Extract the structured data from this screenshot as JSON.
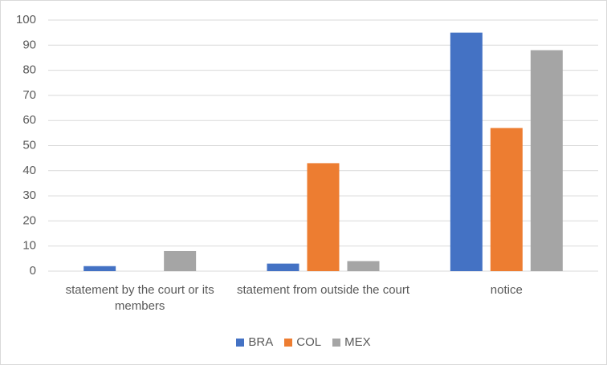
{
  "chart_data": {
    "type": "bar",
    "categories": [
      "statement by the court or its members",
      "statement from outside the court",
      "notice"
    ],
    "series": [
      {
        "name": "BRA",
        "color": "#4472c4",
        "values": [
          2,
          3,
          95
        ]
      },
      {
        "name": "COL",
        "color": "#ed7d31",
        "values": [
          0,
          43,
          57
        ]
      },
      {
        "name": "MEX",
        "color": "#a5a5a5",
        "values": [
          8,
          4,
          88
        ]
      }
    ],
    "ylim": [
      0,
      100
    ],
    "yticks": [
      0,
      10,
      20,
      30,
      40,
      50,
      60,
      70,
      80,
      90,
      100
    ],
    "grid": true,
    "legend": "bottom"
  }
}
